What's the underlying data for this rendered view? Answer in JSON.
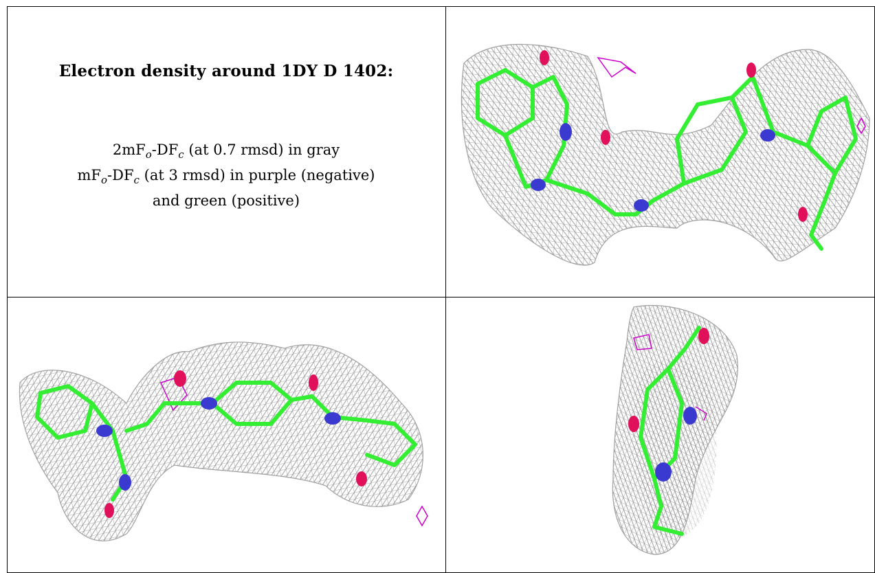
{
  "caption": {
    "title": "Electron density around 1DY D 1402:",
    "line1": {
      "prefix": "2mF",
      "sub1": "o",
      "mid": "-DF",
      "sub2": "c",
      "suffix": " (at 0.7 rmsd) in gray"
    },
    "line2": {
      "prefix": "mF",
      "sub1": "o",
      "mid": "-DF",
      "sub2": "c",
      "suffix": " (at 3 rmsd) in purple (negative)"
    },
    "line3": "and green (positive)"
  },
  "colors": {
    "mesh_2fofc": "#8c8c8c",
    "mesh_fofc_negative": "#cc00cc",
    "mesh_fofc_positive": "#00cc00",
    "carbon": "#33ee33",
    "nitrogen": "#3a3ad0",
    "oxygen": "#e0105a"
  },
  "views": [
    {
      "name": "view-top-right"
    },
    {
      "name": "view-bottom-left"
    },
    {
      "name": "view-bottom-right"
    }
  ]
}
